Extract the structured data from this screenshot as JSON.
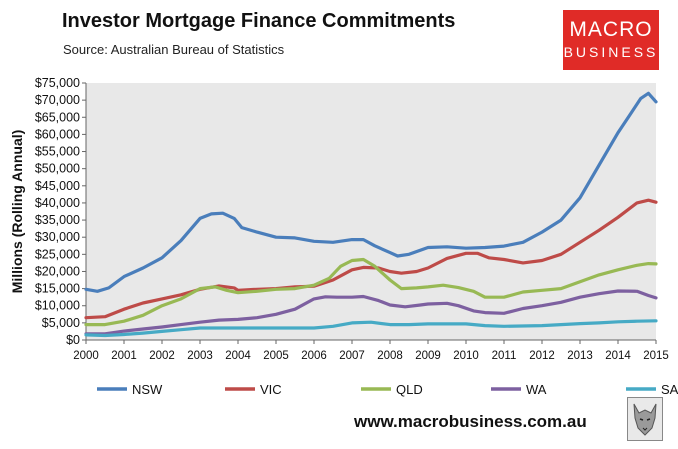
{
  "header": {
    "title": "Investor Mortgage Finance Commitments",
    "subtitle": "Source: Australian Bureau of Statistics"
  },
  "logo": {
    "line1": "MACRO",
    "line2": "BUSINESS"
  },
  "footer": {
    "url": "www.macrobusiness.com.au"
  },
  "colors": {
    "plot_bg": "#e8e8e8",
    "NSW": "#4a7ebb",
    "VIC": "#be4b48",
    "QLD": "#98b954",
    "WA": "#7d60a0",
    "SA": "#46aac5"
  },
  "chart_data": {
    "type": "line",
    "ylabel": "Millions (Rolling Annual)",
    "xlabel": "",
    "xlim": [
      2000,
      2015
    ],
    "ylim": [
      0,
      75000
    ],
    "grid": false,
    "legend_position": "bottom",
    "x_ticks": [
      "2000",
      "2001",
      "2002",
      "2003",
      "2004",
      "2005",
      "2006",
      "2007",
      "2008",
      "2009",
      "2010",
      "2011",
      "2012",
      "2013",
      "2014",
      "2015"
    ],
    "y_ticks": [
      "$0",
      "$5,000",
      "$10,000",
      "$15,000",
      "$20,000",
      "$25,000",
      "$30,000",
      "$35,000",
      "$40,000",
      "$45,000",
      "$50,000",
      "$55,000",
      "$60,000",
      "$65,000",
      "$70,000",
      "$75,000"
    ],
    "series": [
      {
        "name": "NSW",
        "points": [
          [
            2000,
            14800
          ],
          [
            2000.3,
            14200
          ],
          [
            2000.6,
            15200
          ],
          [
            2001,
            18500
          ],
          [
            2001.5,
            21000
          ],
          [
            2002,
            24000
          ],
          [
            2002.5,
            29000
          ],
          [
            2003,
            35500
          ],
          [
            2003.3,
            36800
          ],
          [
            2003.6,
            37000
          ],
          [
            2003.9,
            35500
          ],
          [
            2004.1,
            32800
          ],
          [
            2004.5,
            31500
          ],
          [
            2005,
            30000
          ],
          [
            2005.5,
            29800
          ],
          [
            2006,
            28800
          ],
          [
            2006.5,
            28500
          ],
          [
            2007,
            29300
          ],
          [
            2007.3,
            29300
          ],
          [
            2007.6,
            27500
          ],
          [
            2008,
            25500
          ],
          [
            2008.2,
            24500
          ],
          [
            2008.5,
            25000
          ],
          [
            2009,
            27000
          ],
          [
            2009.5,
            27200
          ],
          [
            2010,
            26800
          ],
          [
            2010.5,
            27000
          ],
          [
            2011,
            27400
          ],
          [
            2011.5,
            28500
          ],
          [
            2012,
            31500
          ],
          [
            2012.5,
            35000
          ],
          [
            2013,
            41500
          ],
          [
            2013.5,
            51000
          ],
          [
            2014,
            60500
          ],
          [
            2014.3,
            65500
          ],
          [
            2014.6,
            70500
          ],
          [
            2014.8,
            72000
          ],
          [
            2015,
            69500
          ]
        ]
      },
      {
        "name": "VIC",
        "points": [
          [
            2000,
            6500
          ],
          [
            2000.5,
            6800
          ],
          [
            2001,
            9000
          ],
          [
            2001.5,
            10800
          ],
          [
            2002,
            12000
          ],
          [
            2002.5,
            13200
          ],
          [
            2003,
            14800
          ],
          [
            2003.5,
            15800
          ],
          [
            2003.9,
            15200
          ],
          [
            2004,
            14500
          ],
          [
            2004.5,
            14800
          ],
          [
            2005,
            15000
          ],
          [
            2005.5,
            15500
          ],
          [
            2006,
            15700
          ],
          [
            2006.5,
            17500
          ],
          [
            2007,
            20500
          ],
          [
            2007.3,
            21200
          ],
          [
            2007.7,
            21000
          ],
          [
            2008,
            20000
          ],
          [
            2008.3,
            19500
          ],
          [
            2008.7,
            20000
          ],
          [
            2009,
            21000
          ],
          [
            2009.5,
            23800
          ],
          [
            2010,
            25300
          ],
          [
            2010.3,
            25300
          ],
          [
            2010.6,
            24000
          ],
          [
            2011,
            23500
          ],
          [
            2011.5,
            22500
          ],
          [
            2012,
            23200
          ],
          [
            2012.5,
            25000
          ],
          [
            2013,
            28500
          ],
          [
            2013.5,
            32000
          ],
          [
            2014,
            35800
          ],
          [
            2014.5,
            40000
          ],
          [
            2014.8,
            40800
          ],
          [
            2015,
            40200
          ]
        ]
      },
      {
        "name": "QLD",
        "points": [
          [
            2000,
            4500
          ],
          [
            2000.5,
            4500
          ],
          [
            2001,
            5500
          ],
          [
            2001.5,
            7200
          ],
          [
            2002,
            10000
          ],
          [
            2002.5,
            12000
          ],
          [
            2003,
            15000
          ],
          [
            2003.4,
            15500
          ],
          [
            2003.7,
            14500
          ],
          [
            2004,
            13800
          ],
          [
            2004.5,
            14200
          ],
          [
            2005,
            14800
          ],
          [
            2005.5,
            15000
          ],
          [
            2006,
            16000
          ],
          [
            2006.4,
            18000
          ],
          [
            2006.7,
            21500
          ],
          [
            2007,
            23200
          ],
          [
            2007.3,
            23500
          ],
          [
            2007.6,
            21500
          ],
          [
            2008,
            17500
          ],
          [
            2008.3,
            15000
          ],
          [
            2008.7,
            15200
          ],
          [
            2009,
            15500
          ],
          [
            2009.4,
            16000
          ],
          [
            2009.8,
            15300
          ],
          [
            2010.2,
            14200
          ],
          [
            2010.5,
            12500
          ],
          [
            2011,
            12500
          ],
          [
            2011.5,
            14000
          ],
          [
            2012,
            14500
          ],
          [
            2012.5,
            15000
          ],
          [
            2013,
            17000
          ],
          [
            2013.5,
            19000
          ],
          [
            2014,
            20500
          ],
          [
            2014.5,
            21800
          ],
          [
            2014.8,
            22300
          ],
          [
            2015,
            22200
          ]
        ]
      },
      {
        "name": "WA",
        "points": [
          [
            2000,
            1800
          ],
          [
            2000.5,
            1800
          ],
          [
            2001,
            2600
          ],
          [
            2001.5,
            3200
          ],
          [
            2002,
            3800
          ],
          [
            2002.5,
            4500
          ],
          [
            2003,
            5200
          ],
          [
            2003.5,
            5800
          ],
          [
            2004,
            6000
          ],
          [
            2004.5,
            6500
          ],
          [
            2005,
            7500
          ],
          [
            2005.5,
            9000
          ],
          [
            2006,
            12000
          ],
          [
            2006.3,
            12600
          ],
          [
            2006.6,
            12500
          ],
          [
            2007,
            12500
          ],
          [
            2007.3,
            12700
          ],
          [
            2007.7,
            11500
          ],
          [
            2008,
            10200
          ],
          [
            2008.4,
            9700
          ],
          [
            2008.8,
            10200
          ],
          [
            2009,
            10500
          ],
          [
            2009.5,
            10700
          ],
          [
            2009.8,
            10000
          ],
          [
            2010.2,
            8500
          ],
          [
            2010.5,
            8000
          ],
          [
            2011,
            7800
          ],
          [
            2011.5,
            9200
          ],
          [
            2012,
            10000
          ],
          [
            2012.5,
            11000
          ],
          [
            2013,
            12500
          ],
          [
            2013.5,
            13500
          ],
          [
            2014,
            14300
          ],
          [
            2014.5,
            14200
          ],
          [
            2014.8,
            13000
          ],
          [
            2015,
            12300
          ]
        ]
      },
      {
        "name": "SA",
        "points": [
          [
            2000,
            1500
          ],
          [
            2000.5,
            1300
          ],
          [
            2001,
            1600
          ],
          [
            2001.5,
            2000
          ],
          [
            2002,
            2500
          ],
          [
            2002.5,
            3000
          ],
          [
            2003,
            3500
          ],
          [
            2003.5,
            3500
          ],
          [
            2004,
            3500
          ],
          [
            2005,
            3500
          ],
          [
            2006,
            3500
          ],
          [
            2006.5,
            4000
          ],
          [
            2007,
            5000
          ],
          [
            2007.5,
            5200
          ],
          [
            2008,
            4500
          ],
          [
            2008.5,
            4500
          ],
          [
            2009,
            4700
          ],
          [
            2010,
            4700
          ],
          [
            2010.5,
            4200
          ],
          [
            2011,
            4000
          ],
          [
            2012,
            4200
          ],
          [
            2012.5,
            4500
          ],
          [
            2013,
            4800
          ],
          [
            2013.5,
            5000
          ],
          [
            2014,
            5300
          ],
          [
            2014.5,
            5500
          ],
          [
            2015,
            5600
          ]
        ]
      }
    ]
  }
}
